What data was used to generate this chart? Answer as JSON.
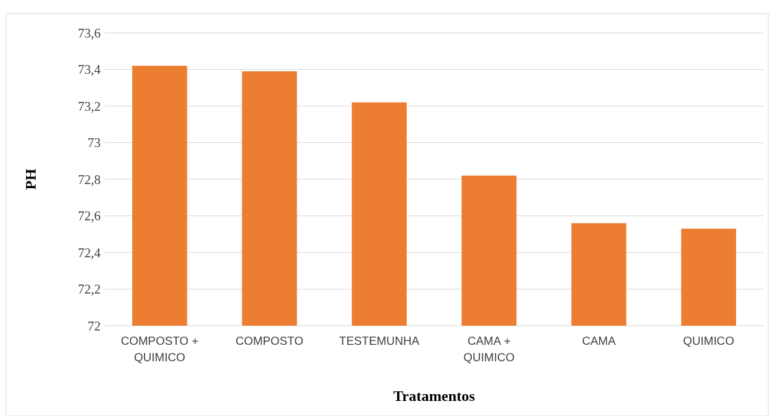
{
  "chart_data": {
    "type": "bar",
    "xlabel": "Tratamentos",
    "ylabel": "PH",
    "categories": [
      "COMPOSTO + QUIMICO",
      "COMPOSTO",
      "TESTEMUNHA",
      "CAMA + QUIMICO",
      "CAMA",
      "QUIMICO"
    ],
    "values": [
      73.42,
      73.39,
      73.22,
      72.82,
      72.56,
      72.53
    ],
    "color": "#ed7d31",
    "ylim": [
      72,
      73.6
    ],
    "yticks": [
      72,
      {
        "value": 72.2,
        "label": "72,2"
      },
      {
        "value": 72.4,
        "label": "72,4"
      },
      {
        "value": 72.6,
        "label": "72,6"
      },
      {
        "value": 72.8,
        "label": "72,8"
      },
      73,
      {
        "value": 73.2,
        "label": "73,2"
      },
      {
        "value": 73.4,
        "label": "73,4"
      },
      {
        "value": 73.6,
        "label": "73,6"
      }
    ],
    "grid": "y"
  }
}
